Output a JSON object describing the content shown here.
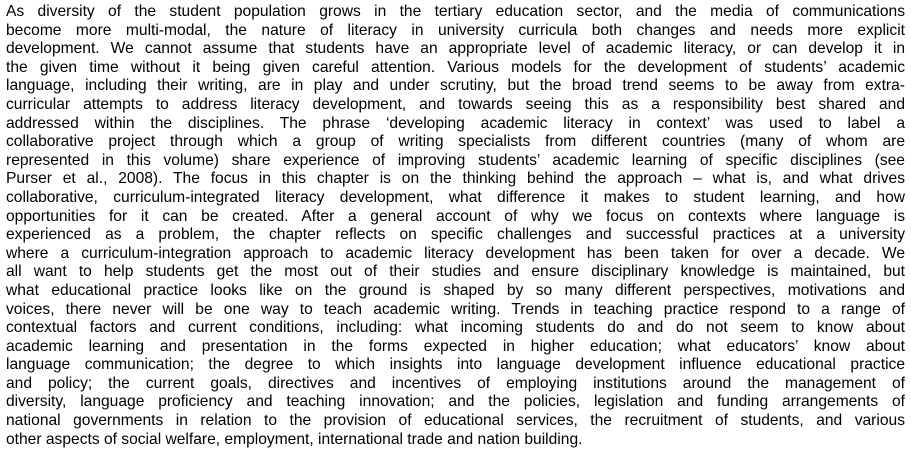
{
  "document": {
    "lines": [
      "As diversity of the student population grows in the tertiary education sector, and the media of communications",
      "become more multi-modal, the nature of literacy in university curricula both changes and needs more explicit",
      "development. We cannot assume that students have an appropriate level of academic literacy, or can develop it in",
      "the given time without it being given careful attention. Various models for the development of students’ academic",
      "language, including their writing, are in play and under scrutiny, but the broad trend seems to be away from extra-",
      "curricular attempts to address literacy development, and towards seeing this as a responsibility best shared and",
      "addressed within the disciplines. The phrase ‘developing academic literacy in context’ was used to label a",
      "collaborative project through which a group of writing specialists from different countries (many of whom are",
      "represented in this volume) share experience of improving students’ academic learning of specific disciplines (see",
      "Purser et al., 2008). The focus in this chapter is on the thinking behind the approach – what is, and what drives",
      "collaborative, curriculum-integrated literacy development, what difference it makes to student learning, and how",
      "opportunities for it can be created. After a general account of why we focus on contexts where language is",
      "experienced as a problem, the chapter reflects on specific challenges and successful practices at a university",
      "where a curriculum-integration approach to academic literacy development has been taken for over a decade. We",
      "all want to help students get the most out of their studies and ensure disciplinary knowledge is maintained, but",
      "what educational practice looks like on the ground is shaped by so many different perspectives, motivations and",
      "voices, there never will be one way to teach academic writing. Trends in teaching practice  respond to a range of",
      "contextual factors and current conditions, including: what incoming students do and do not seem to know about",
      "academic learning and presentation in the forms expected in higher education; what educators’ know about",
      "language communication; the degree to which insights into language development influence educational practice",
      "and policy; the current goals, directives and incentives of employing institutions around the management of",
      "diversity, language proficiency and teaching innovation; and the policies, legislation and funding arrangements of",
      "national governments in relation to the provision of educational services, the recruitment of students, and various",
      "other aspects of social welfare, employment, international trade and nation building."
    ]
  }
}
